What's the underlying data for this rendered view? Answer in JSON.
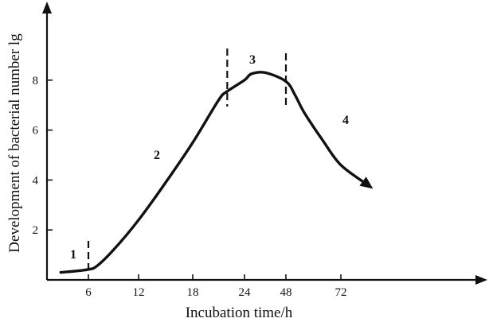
{
  "chart_data": {
    "type": "line",
    "xlabel": "Incubation time/h",
    "ylabel": "Development of bacterial number lg",
    "x_ticks": [
      "6",
      "12",
      "18",
      "24",
      "48",
      "72"
    ],
    "y_ticks": [
      "2",
      "4",
      "6",
      "8"
    ],
    "ylim": [
      0,
      10
    ],
    "series": [
      {
        "x": [
          "2",
          "4",
          "6",
          "7",
          "9",
          "12",
          "15",
          "18",
          "21",
          "22",
          "24",
          "28",
          "36",
          "48",
          "52",
          "56",
          "64",
          "72",
          "80"
        ],
        "y": [
          0.3,
          0.35,
          0.42,
          0.55,
          1.2,
          2.4,
          3.9,
          5.5,
          7.2,
          7.55,
          8.0,
          8.25,
          8.3,
          7.95,
          7.4,
          6.7,
          5.6,
          4.6,
          3.8
        ]
      }
    ],
    "dividers_x": [
      "6",
      "22",
      "48"
    ],
    "phase_labels": [
      "1",
      "2",
      "3",
      "4"
    ],
    "grid": false,
    "legend": "none"
  }
}
